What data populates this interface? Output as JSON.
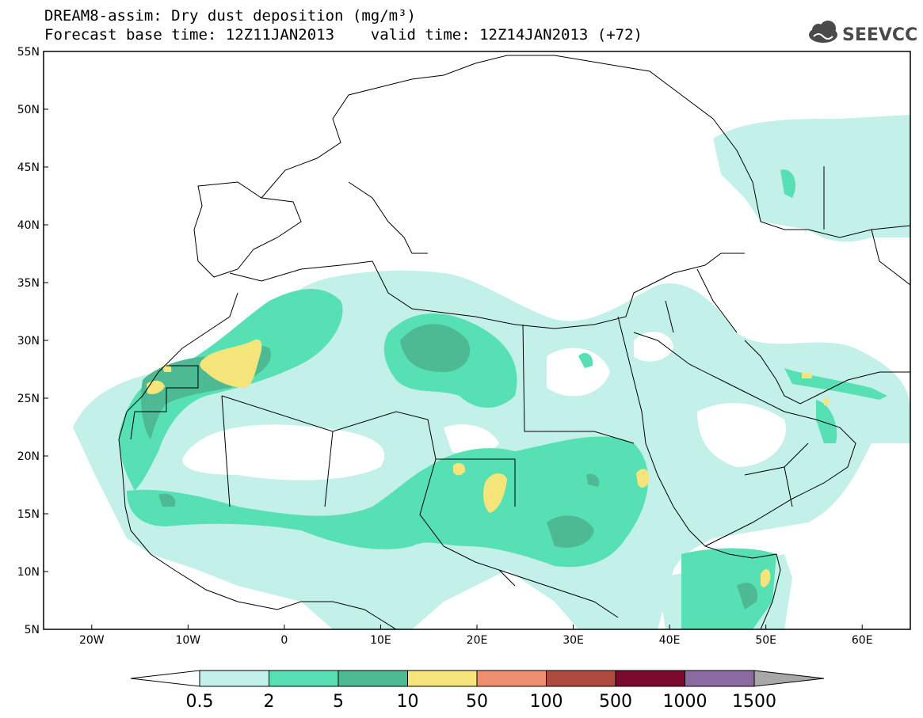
{
  "header": {
    "title_line1": "DREAM8-assim: Dry dust deposition (mg/m³)",
    "title_line2": "Forecast base time: 12Z11JAN2013    valid time: 12Z14JAN2013 (+72)",
    "logo_text": "SEEVCCC",
    "logo_icon": "cloud-icon"
  },
  "map": {
    "lat_labels": [
      "55N",
      "50N",
      "45N",
      "40N",
      "35N",
      "30N",
      "25N",
      "20N",
      "15N",
      "10N",
      "5N"
    ],
    "lon_labels": [
      "20W",
      "10W",
      "0",
      "10E",
      "20E",
      "30E",
      "40E",
      "50E",
      "60E"
    ],
    "lat_range": [
      5,
      55
    ],
    "lon_range": [
      -25,
      65
    ]
  },
  "colorbar": {
    "labels": [
      "0.5",
      "2",
      "5",
      "10",
      "50",
      "100",
      "500",
      "1000",
      "1500"
    ],
    "colors": [
      "#c3f0e8",
      "#57e0b4",
      "#4dba94",
      "#f5e57a",
      "#ee9070",
      "#ae4a3e",
      "#7c0a2e",
      "#8a6aa0",
      "#a8a8a8"
    ]
  },
  "palette": {
    "level1": "#c3f0e8",
    "level2": "#57e0b4",
    "level3": "#4dba94",
    "level4": "#f5e57a"
  }
}
